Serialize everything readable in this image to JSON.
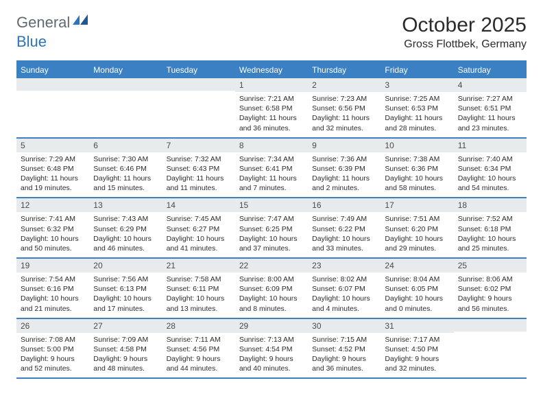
{
  "brand": {
    "general": "General",
    "blue": "Blue"
  },
  "title": {
    "month": "October 2025",
    "location": "Gross Flottbek, Germany"
  },
  "colors": {
    "header_blue": "#3a80c3",
    "daynum_bg": "#e8ebed",
    "text": "#2b2b2b",
    "logo_gray": "#616a71",
    "logo_blue": "#2a75bb",
    "background": "#ffffff"
  },
  "day_labels": [
    "Sunday",
    "Monday",
    "Tuesday",
    "Wednesday",
    "Thursday",
    "Friday",
    "Saturday"
  ],
  "weeks": [
    [
      null,
      null,
      null,
      {
        "d": "1",
        "sr": "7:21 AM",
        "ss": "6:58 PM",
        "dl": "11 hours and 36 minutes."
      },
      {
        "d": "2",
        "sr": "7:23 AM",
        "ss": "6:56 PM",
        "dl": "11 hours and 32 minutes."
      },
      {
        "d": "3",
        "sr": "7:25 AM",
        "ss": "6:53 PM",
        "dl": "11 hours and 28 minutes."
      },
      {
        "d": "4",
        "sr": "7:27 AM",
        "ss": "6:51 PM",
        "dl": "11 hours and 23 minutes."
      }
    ],
    [
      {
        "d": "5",
        "sr": "7:29 AM",
        "ss": "6:48 PM",
        "dl": "11 hours and 19 minutes."
      },
      {
        "d": "6",
        "sr": "7:30 AM",
        "ss": "6:46 PM",
        "dl": "11 hours and 15 minutes."
      },
      {
        "d": "7",
        "sr": "7:32 AM",
        "ss": "6:43 PM",
        "dl": "11 hours and 11 minutes."
      },
      {
        "d": "8",
        "sr": "7:34 AM",
        "ss": "6:41 PM",
        "dl": "11 hours and 7 minutes."
      },
      {
        "d": "9",
        "sr": "7:36 AM",
        "ss": "6:39 PM",
        "dl": "11 hours and 2 minutes."
      },
      {
        "d": "10",
        "sr": "7:38 AM",
        "ss": "6:36 PM",
        "dl": "10 hours and 58 minutes."
      },
      {
        "d": "11",
        "sr": "7:40 AM",
        "ss": "6:34 PM",
        "dl": "10 hours and 54 minutes."
      }
    ],
    [
      {
        "d": "12",
        "sr": "7:41 AM",
        "ss": "6:32 PM",
        "dl": "10 hours and 50 minutes."
      },
      {
        "d": "13",
        "sr": "7:43 AM",
        "ss": "6:29 PM",
        "dl": "10 hours and 46 minutes."
      },
      {
        "d": "14",
        "sr": "7:45 AM",
        "ss": "6:27 PM",
        "dl": "10 hours and 41 minutes."
      },
      {
        "d": "15",
        "sr": "7:47 AM",
        "ss": "6:25 PM",
        "dl": "10 hours and 37 minutes."
      },
      {
        "d": "16",
        "sr": "7:49 AM",
        "ss": "6:22 PM",
        "dl": "10 hours and 33 minutes."
      },
      {
        "d": "17",
        "sr": "7:51 AM",
        "ss": "6:20 PM",
        "dl": "10 hours and 29 minutes."
      },
      {
        "d": "18",
        "sr": "7:52 AM",
        "ss": "6:18 PM",
        "dl": "10 hours and 25 minutes."
      }
    ],
    [
      {
        "d": "19",
        "sr": "7:54 AM",
        "ss": "6:16 PM",
        "dl": "10 hours and 21 minutes."
      },
      {
        "d": "20",
        "sr": "7:56 AM",
        "ss": "6:13 PM",
        "dl": "10 hours and 17 minutes."
      },
      {
        "d": "21",
        "sr": "7:58 AM",
        "ss": "6:11 PM",
        "dl": "10 hours and 13 minutes."
      },
      {
        "d": "22",
        "sr": "8:00 AM",
        "ss": "6:09 PM",
        "dl": "10 hours and 8 minutes."
      },
      {
        "d": "23",
        "sr": "8:02 AM",
        "ss": "6:07 PM",
        "dl": "10 hours and 4 minutes."
      },
      {
        "d": "24",
        "sr": "8:04 AM",
        "ss": "6:05 PM",
        "dl": "10 hours and 0 minutes."
      },
      {
        "d": "25",
        "sr": "8:06 AM",
        "ss": "6:02 PM",
        "dl": "9 hours and 56 minutes."
      }
    ],
    [
      {
        "d": "26",
        "sr": "7:08 AM",
        "ss": "5:00 PM",
        "dl": "9 hours and 52 minutes."
      },
      {
        "d": "27",
        "sr": "7:09 AM",
        "ss": "4:58 PM",
        "dl": "9 hours and 48 minutes."
      },
      {
        "d": "28",
        "sr": "7:11 AM",
        "ss": "4:56 PM",
        "dl": "9 hours and 44 minutes."
      },
      {
        "d": "29",
        "sr": "7:13 AM",
        "ss": "4:54 PM",
        "dl": "9 hours and 40 minutes."
      },
      {
        "d": "30",
        "sr": "7:15 AM",
        "ss": "4:52 PM",
        "dl": "9 hours and 36 minutes."
      },
      {
        "d": "31",
        "sr": "7:17 AM",
        "ss": "4:50 PM",
        "dl": "9 hours and 32 minutes."
      },
      null
    ]
  ],
  "labels": {
    "sunrise": "Sunrise: ",
    "sunset": "Sunset: ",
    "daylight": "Daylight: "
  }
}
